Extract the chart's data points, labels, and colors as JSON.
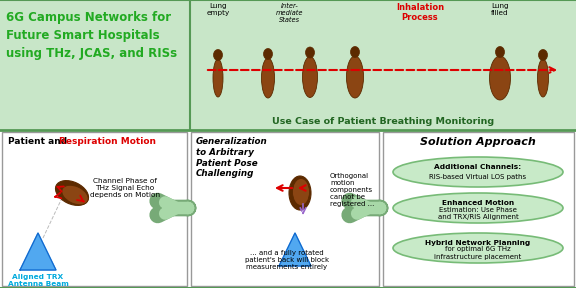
{
  "title_line1": "6G Campus Networks for",
  "title_line2": "Future Smart Hospitals",
  "title_line3": "using THz, JCAS, and RISs",
  "title_color": "#22aa22",
  "top_bg_color": "#c8e6c8",
  "green_arrow_color": "#a8d8a8",
  "green_arrow_edge": "#77aa77",
  "ellipse_fill": "#c8eac8",
  "ellipse_edge": "#77bb77",
  "red_color": "#dd0000",
  "blue_color": "#00aadd",
  "body_dark": "#5c2a00",
  "body_mid": "#8b4513",
  "body_light": "#a0522d",
  "panel_border": "#999999",
  "title_fs": 8.5,
  "label_fs": 5.5,
  "panel_title_fs": 6.5,
  "use_case_label": "Use Case of Patient Breathing Monitoring",
  "panel1_text": "Channel Phase of\nTHz Signal Echo\ndepends on Motion",
  "panel2_title": "Generalization\nto Arbitrary\nPatient Pose\nChallenging",
  "panel2_ortho": "Orthogonal\nmotion\ncomponents\ncannot be\nregistered ...",
  "panel2_bottom": "... and a fully rotated\npatient's back will block\nmeasurements entirely",
  "panel3_title": "Solution Approach",
  "e1b": "Additional Channels:",
  "e1n": "RIS-based Virtual LOS paths",
  "e2b": "Enhanced Motion",
  "e2n": "Estimation: Use Phase\nand TRX/RIS Alignment",
  "e3b": "Hybrid Network Planning",
  "e3n": "for optimal 6G THz\ninfrastructure placement"
}
